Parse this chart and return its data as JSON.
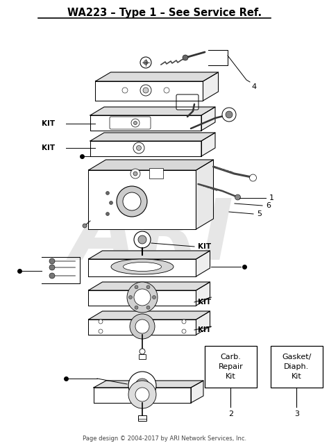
{
  "title": "WA223 – Type 1 – See Service Ref.",
  "background_color": "#ffffff",
  "watermark_text": "ARI",
  "watermark_color": "#c8c8c8",
  "watermark_alpha": 0.45,
  "footer_text": "Page design © 2004-2017 by ARI Network Services, Inc.",
  "footer_fontsize": 6.0,
  "title_fontsize": 10.5,
  "box1_label": "Carb.\nRepair\nKit",
  "box2_label": "Gasket/\nDiaph.\nKit",
  "box1_num": "2",
  "box2_num": "3",
  "line_color": "#000000",
  "gray_light": "#e8e8e8",
  "gray_mid": "#cccccc",
  "gray_dark": "#999999",
  "lw": 0.75
}
